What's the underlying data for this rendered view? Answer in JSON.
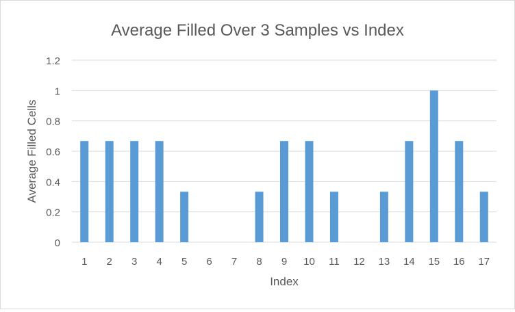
{
  "chart_data": {
    "type": "bar",
    "title": "Average Filled Over 3 Samples vs Index",
    "xlabel": "Index",
    "ylabel": "Average Filled Cells",
    "categories": [
      "1",
      "2",
      "3",
      "4",
      "5",
      "6",
      "7",
      "8",
      "9",
      "10",
      "11",
      "12",
      "13",
      "14",
      "15",
      "16",
      "17"
    ],
    "series": [
      {
        "values": [
          0.667,
          0.667,
          0.667,
          0.667,
          0.333,
          0,
          0,
          0.333,
          0.667,
          0.667,
          0.333,
          0,
          0.333,
          0.667,
          1,
          0.667,
          0.333
        ],
        "color": "#5b9bd5"
      }
    ],
    "ylim": [
      0,
      1.2
    ],
    "yticks": [
      "0",
      "0.2",
      "0.4",
      "0.6",
      "0.8",
      "1",
      "1.2"
    ],
    "grid": true,
    "legend": "none",
    "colors": {
      "gridline": "#d9d9d9",
      "text": "#595959",
      "border": "#d9d9d9"
    }
  }
}
